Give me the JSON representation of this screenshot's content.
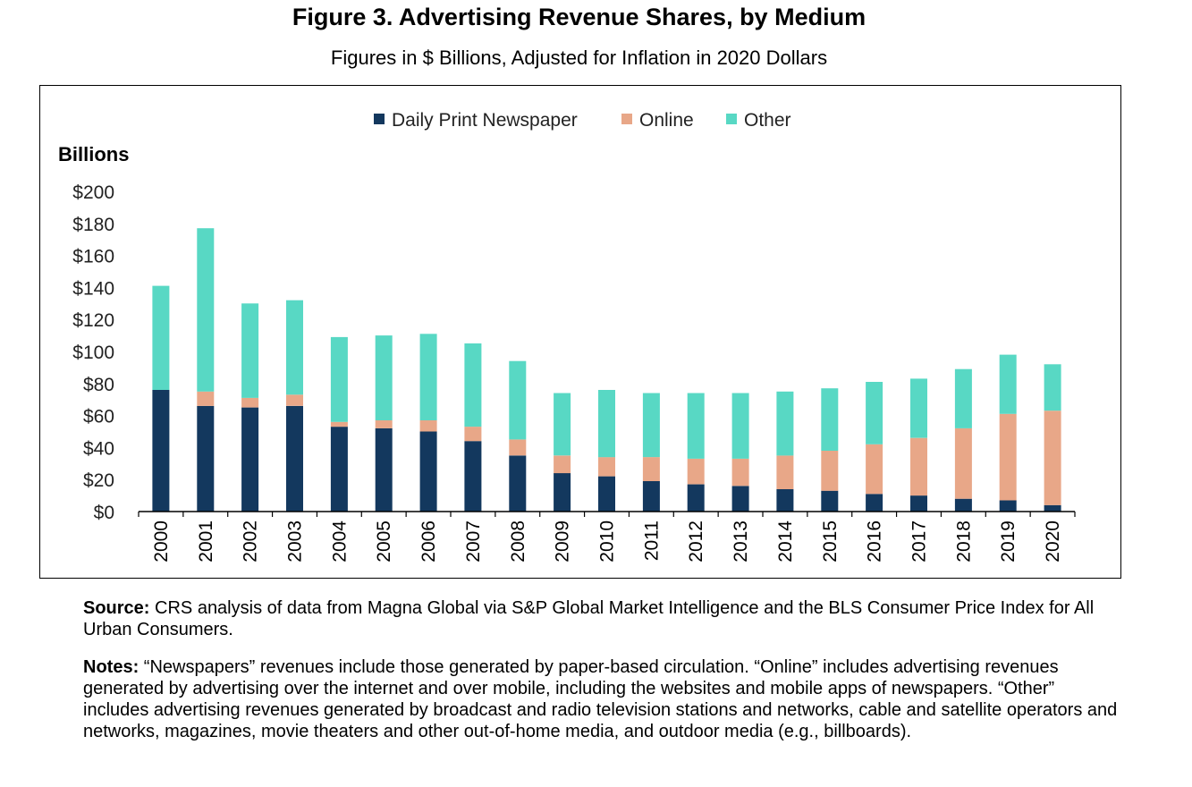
{
  "title": "Figure 3. Advertising Revenue Shares, by Medium",
  "subtitle": "Figures in $ Billions, Adjusted for Inflation in 2020 Dollars",
  "source": {
    "label": "Source:",
    "text": "CRS analysis of data from Magna Global via S&P Global Market Intelligence and the BLS Consumer Price Index for All Urban Consumers."
  },
  "notes": {
    "label": "Notes:",
    "text": "“Newspapers” revenues include those generated by paper-based circulation. “Online” includes advertising revenues generated by advertising over the internet and over mobile, including the websites and mobile apps of newspapers. “Other” includes advertising revenues generated by broadcast and radio television stations and networks, cable and satellite operators and networks, magazines, movie theaters and other out-of-home media, and outdoor media (e.g., billboards)."
  },
  "chart_data": {
    "type": "bar",
    "stacked": true,
    "ylabel": "Billions",
    "ylim": [
      0,
      200
    ],
    "yticks": [
      "$0",
      "$20",
      "$40",
      "$60",
      "$80",
      "$100",
      "$120",
      "$140",
      "$160",
      "$180",
      "$200"
    ],
    "categories": [
      "2000",
      "2001",
      "2002",
      "2003",
      "2004",
      "2005",
      "2006",
      "2007",
      "2008",
      "2009",
      "2010",
      "2011",
      "2012",
      "2013",
      "2014",
      "2015",
      "2016",
      "2017",
      "2018",
      "2019",
      "2020"
    ],
    "legend_position": "top",
    "grid": false,
    "series": [
      {
        "name": "Daily Print Newspaper",
        "color": "#13385e",
        "values": [
          76,
          66,
          65,
          66,
          53,
          52,
          50,
          44,
          35,
          24,
          22,
          19,
          17,
          16,
          14,
          13,
          11,
          10,
          8,
          7,
          4
        ]
      },
      {
        "name": "Online",
        "color": "#e8a788",
        "values": [
          0,
          9,
          6,
          7,
          3,
          5,
          7,
          9,
          10,
          11,
          12,
          15,
          16,
          17,
          21,
          25,
          31,
          36,
          44,
          54,
          59
        ]
      },
      {
        "name": "Other",
        "color": "#58d8c4",
        "values": [
          65,
          102,
          59,
          59,
          53,
          53,
          54,
          52,
          49,
          39,
          42,
          40,
          41,
          41,
          40,
          39,
          39,
          37,
          37,
          37,
          29
        ]
      }
    ]
  }
}
